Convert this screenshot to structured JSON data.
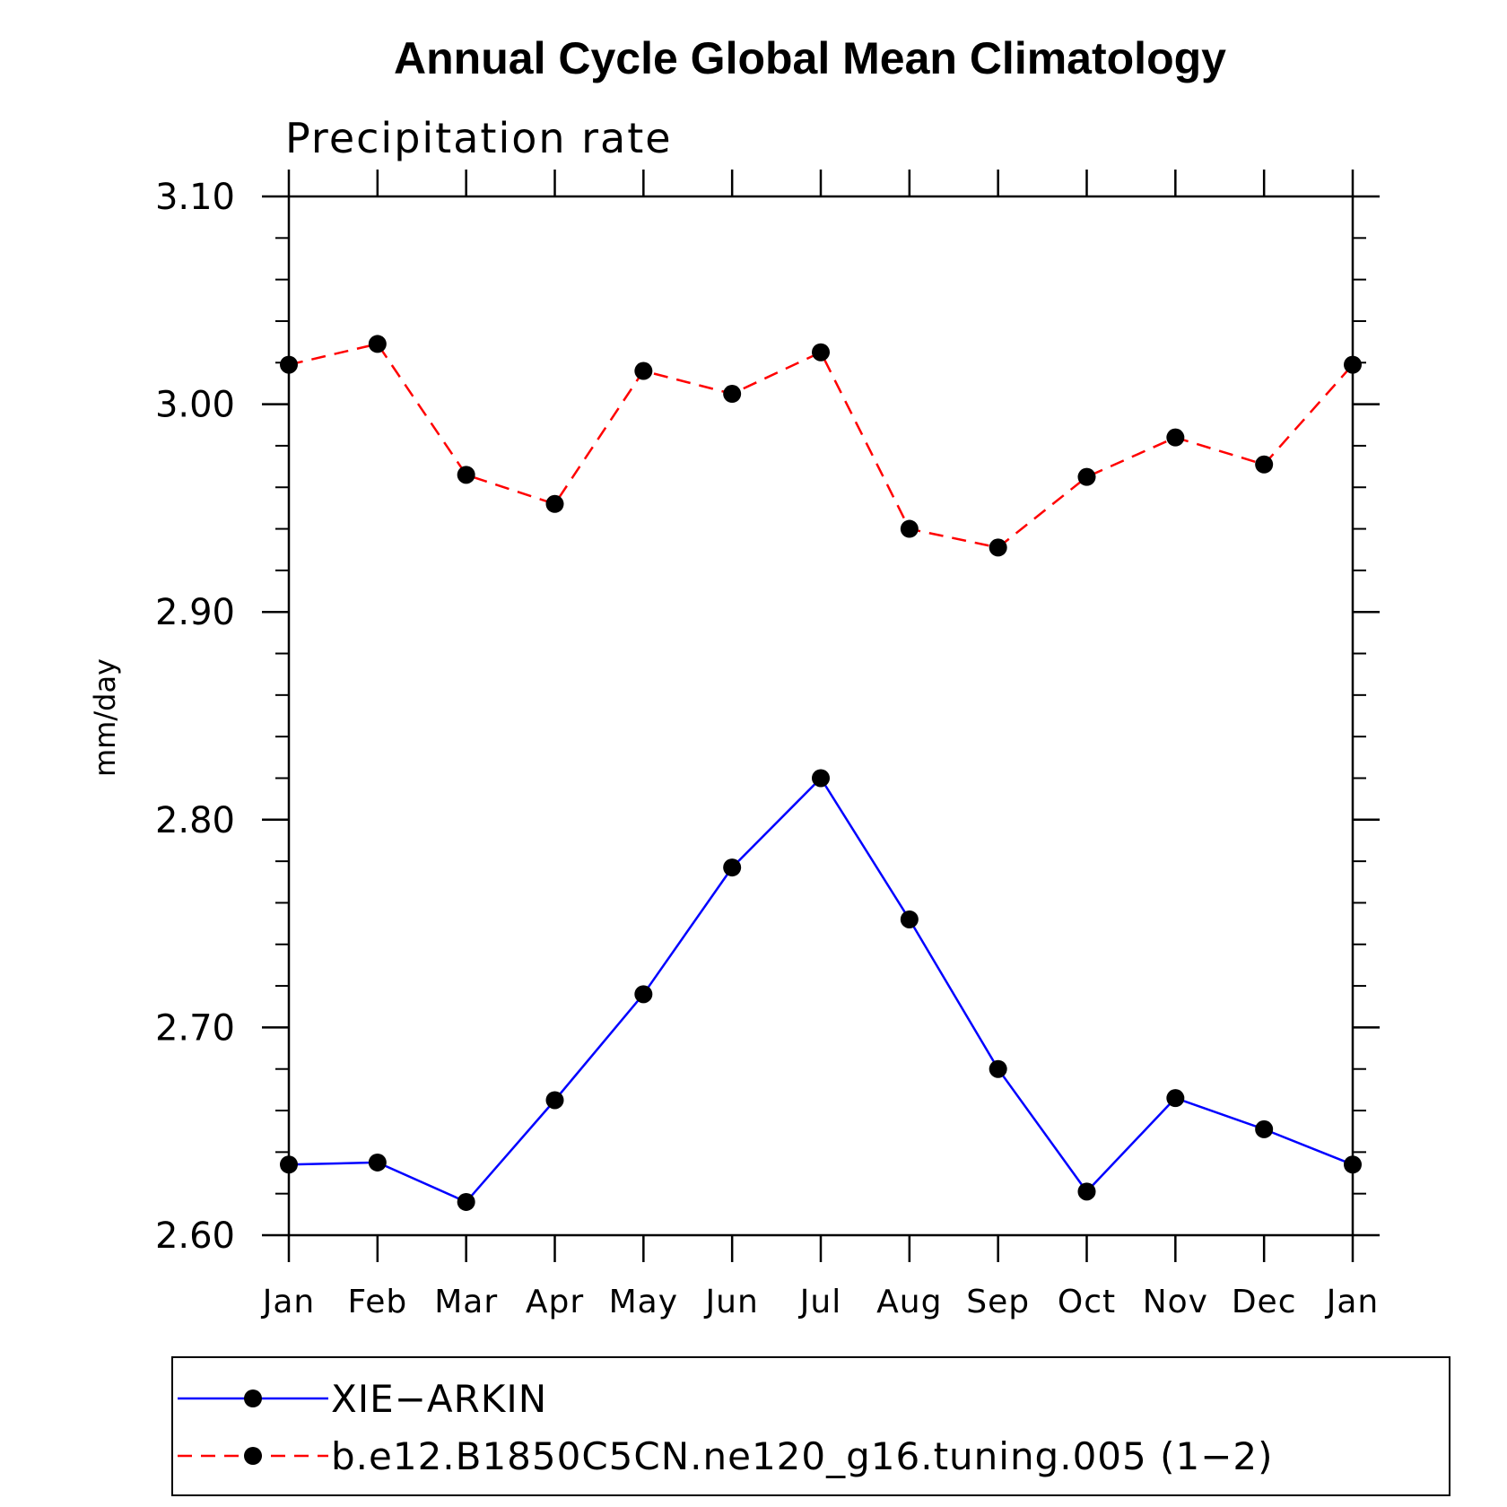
{
  "chart_data": {
    "type": "line",
    "title": "Annual Cycle Global Mean Climatology",
    "subtitle": "Precipitation rate",
    "ylabel": "mm/day",
    "xlabel": "",
    "categories": [
      "Jan",
      "Feb",
      "Mar",
      "Apr",
      "May",
      "Jun",
      "Jul",
      "Aug",
      "Sep",
      "Oct",
      "Nov",
      "Dec",
      "Jan"
    ],
    "ylim": [
      2.6,
      3.1
    ],
    "yticks": [
      "2.60",
      "2.70",
      "2.80",
      "2.90",
      "3.00",
      "3.10"
    ],
    "grid": false,
    "legend_placement": "bottom",
    "series": [
      {
        "name": "XIE−ARKIN",
        "color": "#0000ff",
        "line_style": "solid",
        "marker": "filled-circle",
        "values": [
          2.634,
          2.635,
          2.616,
          2.665,
          2.716,
          2.777,
          2.82,
          2.752,
          2.68,
          2.621,
          2.666,
          2.651,
          2.634
        ]
      },
      {
        "name": "b.e12.B1850C5CN.ne120_g16.tuning.005 (1−2)",
        "color": "#ff0000",
        "line_style": "dashed",
        "marker": "filled-circle",
        "values": [
          3.019,
          3.029,
          2.966,
          2.952,
          3.016,
          3.005,
          3.025,
          2.94,
          2.931,
          2.965,
          2.984,
          2.971,
          3.019
        ]
      }
    ]
  }
}
